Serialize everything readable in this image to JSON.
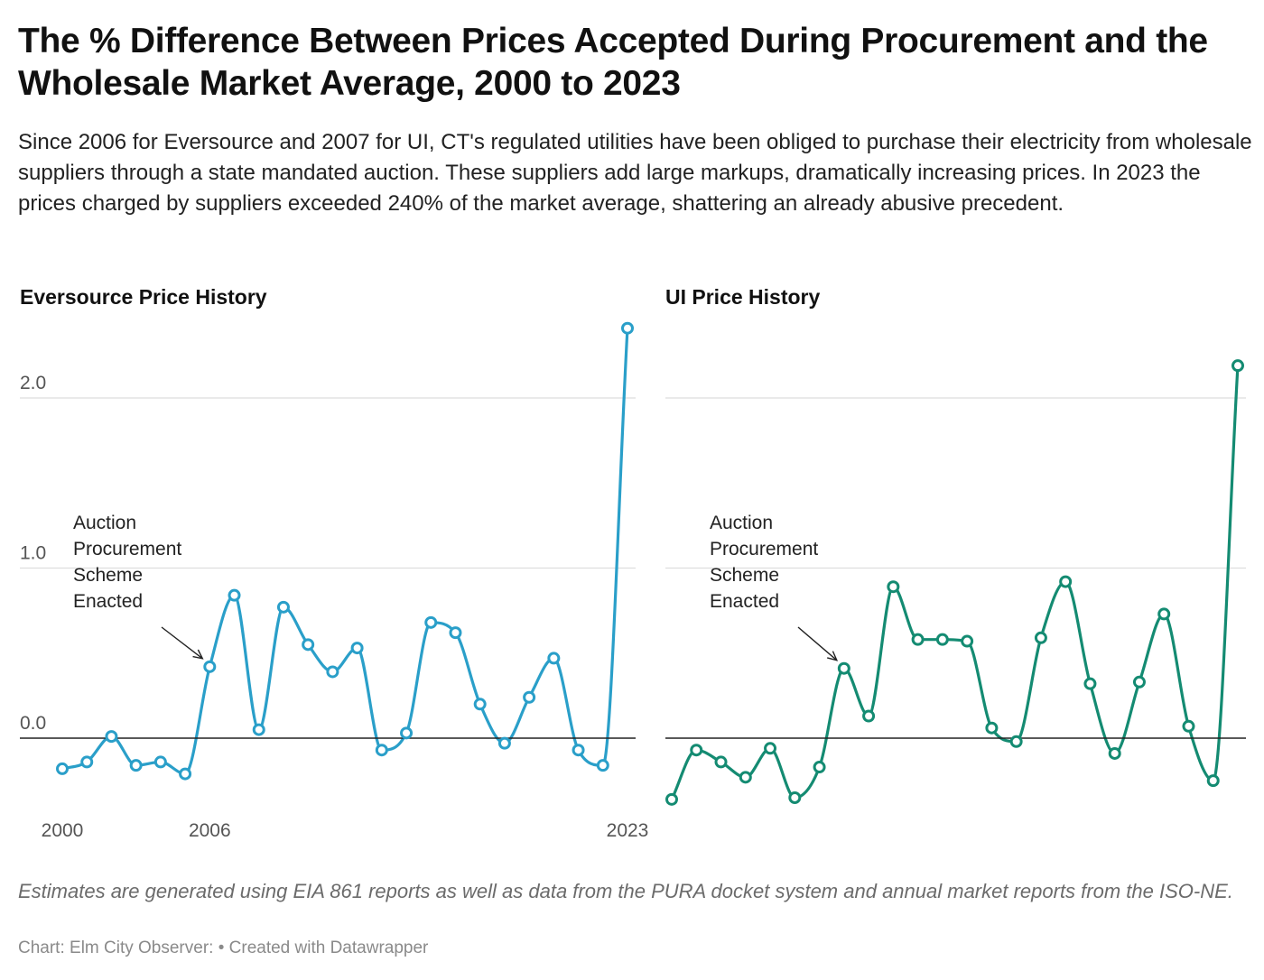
{
  "header": {
    "title": "The % Difference Between Prices Accepted During Procurement and the Wholesale Market Average, 2000 to 2023",
    "subtitle": "Since 2006 for Eversource and 2007 for UI, CT's regulated utilities have been obliged to purchase their electricity from wholesale suppliers through a state mandated auction. These suppliers add large markups, dramatically increasing prices. In 2023 the prices charged by suppliers exceeded 240% of the market average, shattering an already abusive precedent."
  },
  "footer": {
    "notes": "Estimates are generated using EIA 861 reports as well as data from the PURA docket system and annual market reports from the ISO-NE.",
    "source": "Chart: Elm City Observer:",
    "credit": "• Created with Datawrapper"
  },
  "chart_data": [
    {
      "type": "line",
      "title": "Eversource Price History",
      "x": [
        2000,
        2001,
        2002,
        2003,
        2004,
        2005,
        2006,
        2007,
        2008,
        2009,
        2010,
        2011,
        2012,
        2013,
        2014,
        2015,
        2016,
        2017,
        2018,
        2019,
        2020,
        2021,
        2022,
        2023
      ],
      "values": [
        -0.18,
        -0.14,
        0.01,
        -0.16,
        -0.14,
        -0.21,
        0.42,
        0.84,
        0.05,
        0.77,
        0.55,
        0.39,
        0.53,
        -0.07,
        0.03,
        0.68,
        0.62,
        0.2,
        -0.03,
        0.24,
        0.47,
        -0.07,
        -0.16,
        2.41
      ],
      "y_ticks": [
        0,
        1,
        2
      ],
      "y_tick_labels": [
        "0.0",
        "1.0",
        "2.0"
      ],
      "x_tick_labels": [
        {
          "x": 2000,
          "label": "2000"
        },
        {
          "x": 2006,
          "label": "2006"
        },
        {
          "x": 2023,
          "label": "2023"
        }
      ],
      "ylim": [
        -0.4,
        2.6
      ],
      "color": "#2a9fc9",
      "grid": true,
      "annotation": {
        "x": 2006,
        "lines": [
          "Auction",
          "Procurement",
          "Scheme",
          "Enacted"
        ]
      }
    },
    {
      "type": "line",
      "title": "UI Price History",
      "x": [
        2000,
        2001,
        2002,
        2003,
        2004,
        2005,
        2006,
        2007,
        2008,
        2009,
        2010,
        2011,
        2012,
        2013,
        2014,
        2015,
        2016,
        2017,
        2018,
        2019,
        2020,
        2021,
        2022,
        2023
      ],
      "values": [
        -0.36,
        -0.07,
        -0.14,
        -0.23,
        -0.06,
        -0.35,
        -0.17,
        0.41,
        0.13,
        0.89,
        0.58,
        0.58,
        0.57,
        0.06,
        -0.02,
        0.59,
        0.92,
        0.32,
        -0.09,
        0.33,
        0.73,
        0.07,
        -0.25,
        2.19
      ],
      "y_ticks": [
        0,
        1,
        2
      ],
      "ylim": [
        -0.4,
        2.6
      ],
      "color": "#148b72",
      "grid": true,
      "annotation": {
        "x": 2007,
        "lines": [
          "Auction",
          "Procurement",
          "Scheme",
          "Enacted"
        ]
      }
    }
  ]
}
